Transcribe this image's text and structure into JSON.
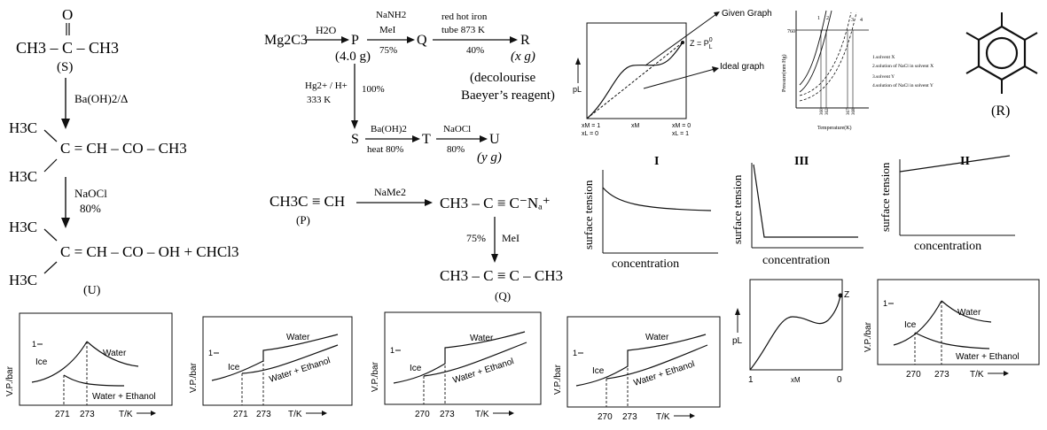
{
  "scheme1": {
    "s_top": "O",
    "s_formula": "CH3 – C – CH3",
    "s_label": "(S)",
    "step1": "Ba(OH)2/Δ",
    "mid_h3c_a": "H3C",
    "mid_h3c_b": "H3C",
    "mid_chain": "C = CH – CO – CH3",
    "step2_reagent": "NaOCl",
    "step2_yield": "80%",
    "u_h3c_a": "H3C",
    "u_h3c_b": "H3C",
    "u_chain": "C = CH – CO – OH + CHCl3",
    "u_label": "(U)"
  },
  "scheme2": {
    "start": "Mg2C3",
    "r1": "H2O",
    "p": "P",
    "p_mass": "(4.0 g)",
    "r2_top": "NaNH2",
    "r2_mid": "MeI",
    "r2_yield": "75%",
    "q": "Q",
    "r3_top": "red hot iron",
    "r3_mid": "tube 873 K",
    "r3_yield": "40%",
    "r": "R",
    "r_mass": "(x g)",
    "decol1": "(decolourise",
    "decol2": "Baeyer’s reagent)",
    "down_r1": "Hg2+ / H+",
    "down_r2": "333 K",
    "down_yield": "100%",
    "s": "S",
    "r4_top": "Ba(OH)2",
    "r4_bottom": "heat 80%",
    "t": "T",
    "r5_top": "NaOCl",
    "r5_bottom": "80%",
    "u": "U",
    "u_mass": "(y g)"
  },
  "scheme3": {
    "left": "CH3C ≡ CH",
    "left_label": "(P)",
    "reagent": "NaMe2",
    "right": "CH3 – C ≡ C⁻Nₐ⁺",
    "down_yield": "75%",
    "down_reagent": "MeI",
    "product": "CH3 – C ≡ C – CH3",
    "product_label": "(Q)"
  },
  "vp_graph": {
    "ylabel": "pL",
    "given": "Given Graph",
    "ideal": "Ideal graph",
    "z_label": "Z = P",
    "z_sup": "0",
    "z_sub": "L",
    "x1a": "xM = 1",
    "x1b": "xL = 0",
    "xmid": "xM",
    "x2a": "xM = 0",
    "x2b": "xL = 1"
  },
  "temp_graph": {
    "ylabel": "Pressure(mm Hg)",
    "xlabel": "Temperature(K)",
    "y760": "760",
    "curves": [
      "1",
      "2",
      "3",
      "4"
    ],
    "xticks": [
      "360",
      "362",
      "367",
      "368"
    ],
    "legend": [
      "1.solvent X",
      "2.solution of NaCl in solvent X",
      "3.solvent Y",
      "4.solution of NaCl in solvent Y"
    ]
  },
  "benzene": {
    "label": "(R)"
  },
  "tension": {
    "ylabel": "surface tension",
    "xlabel": "concentration",
    "titles": [
      "I",
      "III",
      "II"
    ]
  },
  "phase_graphs": {
    "ylabel": "V.P./bar",
    "xlabel": "T/K",
    "one": "1",
    "ice": "Ice",
    "water": "Water",
    "mix": "Water + Ethanol",
    "g1_ticks": [
      "271",
      "273"
    ],
    "g2_ticks": [
      "271",
      "273"
    ],
    "g3_ticks": [
      "270",
      "273"
    ],
    "g4_ticks": [
      "270",
      "273"
    ],
    "g6_ticks": [
      "270",
      "273"
    ]
  },
  "small_vp": {
    "ylabel": "pL",
    "z": "Z",
    "x_left": "1",
    "x_mid": "xM",
    "x_right": "0"
  }
}
